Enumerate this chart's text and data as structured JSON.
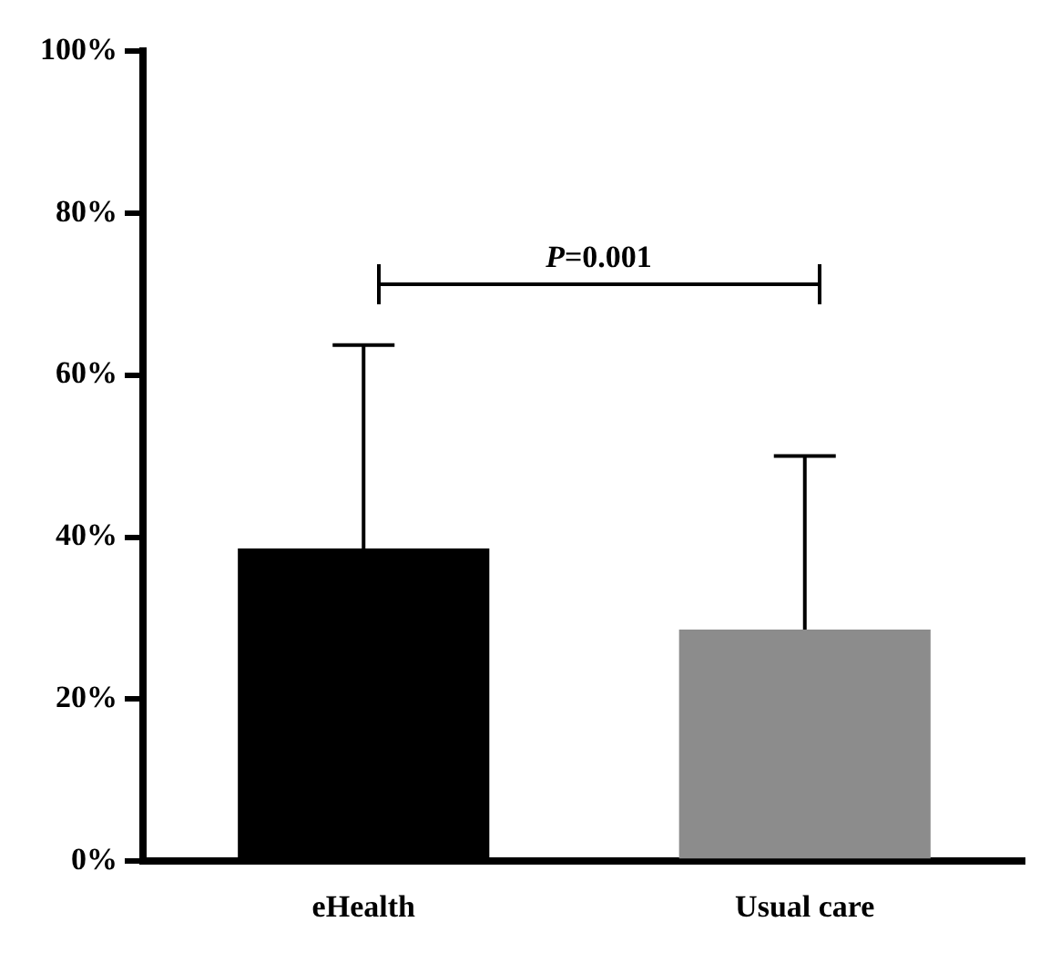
{
  "chart_data": {
    "type": "bar",
    "categories": [
      "eHealth",
      "Usual care"
    ],
    "values": [
      38.6,
      28.6
    ],
    "colors": [
      "#000000",
      "#8c8c8c"
    ],
    "errors": [
      [
        38.6,
        63.7
      ],
      [
        28.6,
        50.0
      ]
    ],
    "ylim": [
      0,
      100
    ],
    "yticks": [
      {
        "value": 0,
        "label": "0%"
      },
      {
        "value": 20,
        "label": "20%"
      },
      {
        "value": 40,
        "label": "40%"
      },
      {
        "value": 60,
        "label": "60%"
      },
      {
        "value": 80,
        "label": "80%"
      },
      {
        "value": 100,
        "label": "100%"
      }
    ],
    "annotations": [
      "P=0.001"
    ],
    "grid": false,
    "legend": false
  }
}
